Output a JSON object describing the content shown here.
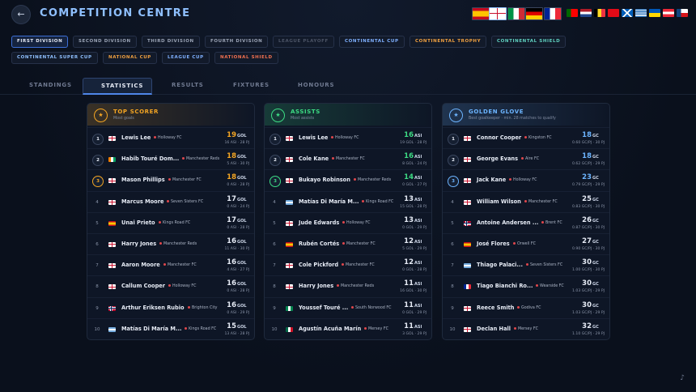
{
  "header": {
    "title": "COMPETITION CENTRE"
  },
  "divisions": [
    {
      "label": "FIRST DIVISION",
      "color": "#e6ebf5"
    },
    {
      "label": "SECOND DIVISION",
      "color": "#9aa3b5"
    },
    {
      "label": "THIRD DIVISION",
      "color": "#9aa3b5"
    },
    {
      "label": "FOURTH DIVISION",
      "color": "#9aa3b5"
    },
    {
      "label": "LEAGUE PLAYOFF",
      "color": "#4c5466"
    },
    {
      "label": "CONTINENTAL CUP",
      "color": "#7fb0ff"
    },
    {
      "label": "CONTINENTAL TROPHY",
      "color": "#f0a040"
    },
    {
      "label": "CONTINENTAL SHIELD",
      "color": "#5fd0c0"
    },
    {
      "label": "CONTINENTAL SUPER CUP",
      "color": "#8fc0ff"
    },
    {
      "label": "NATIONAL CUP",
      "color": "#f0a040"
    },
    {
      "label": "LEAGUE CUP",
      "color": "#7fb0ff"
    },
    {
      "label": "NATIONAL SHIELD",
      "color": "#f07050"
    }
  ],
  "active_division": 0,
  "tabs": [
    "STANDINGS",
    "STATISTICS",
    "RESULTS",
    "FIXTURES",
    "HONOURS"
  ],
  "active_tab": 1,
  "panels": [
    {
      "title": "TOP SCORER",
      "subtitle": "Most goals",
      "unit": "GOL",
      "accent": "#f5a623",
      "rows": [
        {
          "rank": 1,
          "flag": "eng",
          "name": "Lewis Lee",
          "club": "Holloway FC",
          "value": 19,
          "detail": "16 ASI · 28 PJ"
        },
        {
          "rank": 2,
          "flag": "civ",
          "name": "Habib Touré Dom...",
          "club": "Manchester Reds",
          "value": 18,
          "detail": "5 ASI · 30 PJ"
        },
        {
          "rank": 3,
          "flag": "eng",
          "name": "Mason Phillips",
          "club": "Manchester FC",
          "value": 18,
          "detail": "0 ASI · 28 PJ"
        },
        {
          "rank": 4,
          "flag": "eng",
          "name": "Marcus Moore",
          "club": "Seven Sisters FC",
          "value": 17,
          "detail": "0 ASI · 24 PJ"
        },
        {
          "rank": 5,
          "flag": "esp",
          "name": "Unai Prieto",
          "club": "Kings Road FC",
          "value": 17,
          "detail": "0 ASI · 28 PJ"
        },
        {
          "rank": 6,
          "flag": "eng",
          "name": "Harry Jones",
          "club": "Manchester Reds",
          "value": 16,
          "detail": "11 ASI · 30 PJ"
        },
        {
          "rank": 7,
          "flag": "eng",
          "name": "Aaron Moore",
          "club": "Manchester FC",
          "value": 16,
          "detail": "4 ASI · 27 PJ"
        },
        {
          "rank": 8,
          "flag": "eng",
          "name": "Callum Cooper",
          "club": "Holloway FC",
          "value": 16,
          "detail": "0 ASI · 28 PJ"
        },
        {
          "rank": 9,
          "flag": "nor",
          "name": "Arthur Eriksen Rubio",
          "club": "Brighton City",
          "value": 16,
          "detail": "0 ASI · 29 PJ"
        },
        {
          "rank": 10,
          "flag": "arg",
          "name": "Matías Di María M...",
          "club": "Kings Road FC",
          "value": 15,
          "detail": "13 ASI · 28 PJ"
        }
      ]
    },
    {
      "title": "ASSISTS",
      "subtitle": "Most assists",
      "unit": "ASI",
      "accent": "#3ddc84",
      "rows": [
        {
          "rank": 1,
          "flag": "eng",
          "name": "Lewis Lee",
          "club": "Holloway FC",
          "value": 16,
          "detail": "19 GOL · 28 PJ"
        },
        {
          "rank": 2,
          "flag": "eng",
          "name": "Cole Kane",
          "club": "Manchester FC",
          "value": 16,
          "detail": "8 GOL · 24 PJ"
        },
        {
          "rank": 3,
          "flag": "eng",
          "name": "Bukayo Robinson",
          "club": "Manchester Reds",
          "value": 14,
          "detail": "0 GOL · 27 PJ"
        },
        {
          "rank": 4,
          "flag": "arg",
          "name": "Matías Di María M...",
          "club": "Kings Road FC",
          "value": 13,
          "detail": "15 GOL · 28 PJ"
        },
        {
          "rank": 5,
          "flag": "eng",
          "name": "Jude Edwards",
          "club": "Holloway FC",
          "value": 13,
          "detail": "0 GOL · 29 PJ"
        },
        {
          "rank": 6,
          "flag": "esp",
          "name": "Rubén Cortés",
          "club": "Manchester FC",
          "value": 12,
          "detail": "5 GOL · 29 PJ"
        },
        {
          "rank": 7,
          "flag": "eng",
          "name": "Cole Pickford",
          "club": "Manchester FC",
          "value": 12,
          "detail": "0 GOL · 28 PJ"
        },
        {
          "rank": 8,
          "flag": "eng",
          "name": "Harry Jones",
          "club": "Manchester Reds",
          "value": 11,
          "detail": "16 GOL · 30 PJ"
        },
        {
          "rank": 9,
          "flag": "ngr",
          "name": "Youssef Touré ...",
          "club": "South Norwood FC",
          "value": 11,
          "detail": "0 GOL · 29 PJ"
        },
        {
          "rank": 10,
          "flag": "mex",
          "name": "Agustín Acuña Marín",
          "club": "Mersey FC",
          "value": 11,
          "detail": "3 GOL · 29 PJ"
        }
      ]
    },
    {
      "title": "GOLDEN GLOVE",
      "subtitle": "Best goalkeeper · min. 28 matches to qualify",
      "unit": "GC",
      "accent": "#6cb4ff",
      "rows": [
        {
          "rank": 1,
          "flag": "eng",
          "name": "Connor Cooper",
          "club": "Kingston FC",
          "value": 18,
          "detail": "0.60 GC/PJ · 30 PJ"
        },
        {
          "rank": 2,
          "flag": "eng",
          "name": "George Evans",
          "club": "Aire FC",
          "value": 18,
          "detail": "0.62 GC/PJ · 29 PJ"
        },
        {
          "rank": 3,
          "flag": "eng",
          "name": "Jack Kane",
          "club": "Holloway FC",
          "value": 23,
          "detail": "0.79 GC/PJ · 29 PJ"
        },
        {
          "rank": 4,
          "flag": "eng",
          "name": "William Wilson",
          "club": "Manchester FC",
          "value": 25,
          "detail": "0.83 GC/PJ · 30 PJ"
        },
        {
          "rank": 5,
          "flag": "nor",
          "name": "Antoine Andersen ...",
          "club": "Brent FC",
          "value": 26,
          "detail": "0.87 GC/PJ · 30 PJ"
        },
        {
          "rank": 6,
          "flag": "esp",
          "name": "José Flores",
          "club": "Orwell FC",
          "value": 27,
          "detail": "0.90 GC/PJ · 30 PJ"
        },
        {
          "rank": 7,
          "flag": "arg",
          "name": "Thiago Palaci...",
          "club": "Seven Sisters FC",
          "value": 30,
          "detail": "1.00 GC/PJ · 30 PJ"
        },
        {
          "rank": 8,
          "flag": "fra",
          "name": "Tiago Bianchi Ro...",
          "club": "Wearside FC",
          "value": 30,
          "detail": "1.03 GC/PJ · 29 PJ"
        },
        {
          "rank": 9,
          "flag": "eng",
          "name": "Reece Smith",
          "club": "Godiva FC",
          "value": 30,
          "detail": "1.03 GC/PJ · 29 PJ"
        },
        {
          "rank": 10,
          "flag": "eng",
          "name": "Declan Hall",
          "club": "Mersey FC",
          "value": 32,
          "detail": "1.10 GC/PJ · 29 PJ"
        }
      ]
    }
  ]
}
